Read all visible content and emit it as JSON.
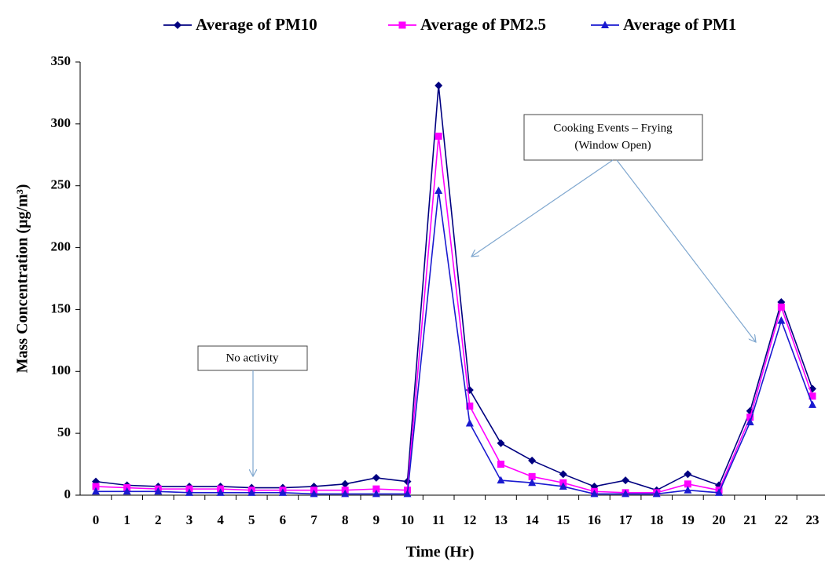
{
  "chart_data": {
    "type": "line",
    "x_label": "Time (Hr)",
    "y_label": "Mass Concentration (µg/m³)",
    "categories": [
      "0",
      "1",
      "2",
      "3",
      "4",
      "5",
      "6",
      "7",
      "8",
      "9",
      "10",
      "11",
      "12",
      "13",
      "14",
      "15",
      "16",
      "17",
      "18",
      "19",
      "20",
      "21",
      "22",
      "23"
    ],
    "series": [
      {
        "name": "Average of PM10",
        "color": "#000080",
        "marker": "diamond",
        "values": [
          11,
          8,
          7,
          7,
          7,
          6,
          6,
          7,
          9,
          14,
          11,
          331,
          85,
          42,
          28,
          17,
          7,
          12,
          4,
          17,
          8,
          68,
          156,
          86
        ]
      },
      {
        "name": "Average of PM2.5",
        "color": "#ff00ff",
        "marker": "square",
        "values": [
          7,
          6,
          5,
          5,
          5,
          4,
          4,
          4,
          4,
          5,
          4,
          290,
          72,
          25,
          15,
          10,
          3,
          2,
          2,
          9,
          4,
          63,
          152,
          80
        ]
      },
      {
        "name": "Average of PM1",
        "color": "#1a1ad0",
        "marker": "triangle",
        "values": [
          3,
          3,
          3,
          2,
          2,
          2,
          2,
          1,
          1,
          1,
          1,
          246,
          58,
          12,
          10,
          7,
          1,
          1,
          1,
          4,
          2,
          59,
          141,
          73
        ]
      }
    ],
    "ylim": [
      0,
      350
    ],
    "yticks": [
      0,
      50,
      100,
      150,
      200,
      250,
      300,
      350
    ],
    "annotations": [
      {
        "lines": [
          "No activity"
        ]
      },
      {
        "lines": [
          "Cooking Events – Frying",
          "(Window Open)"
        ]
      }
    ],
    "legend": "top"
  }
}
